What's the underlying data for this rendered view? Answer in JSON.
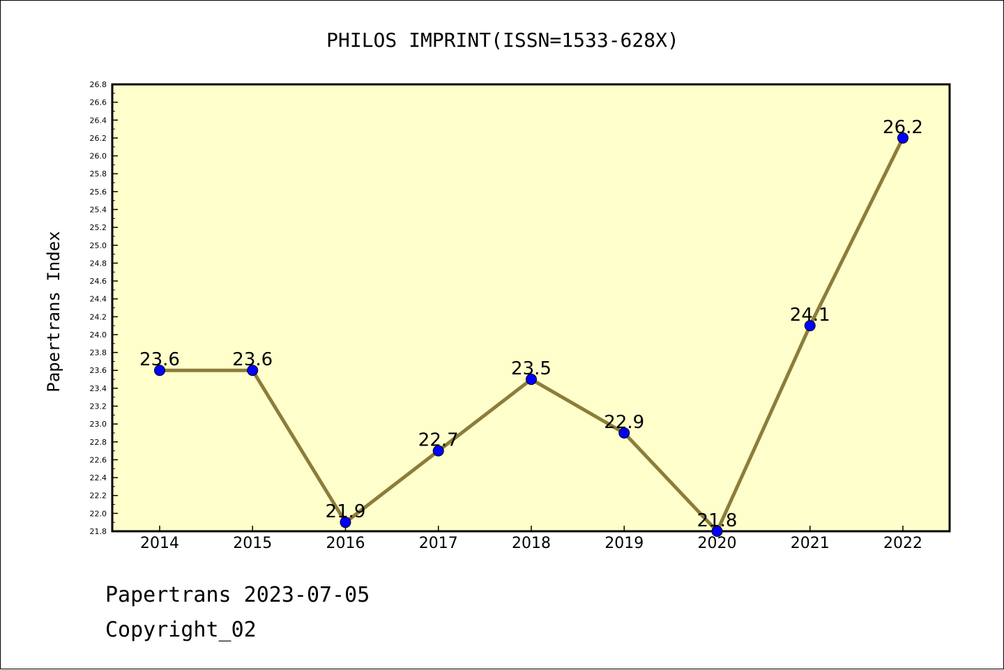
{
  "footer": {
    "line1": "Papertrans 2023-07-05",
    "line2": "Copyright_02"
  },
  "chart_data": {
    "type": "line",
    "title": "PHILOS IMPRINT(ISSN=1533-628X)",
    "xlabel": "",
    "ylabel": "Papertrans Index",
    "x": [
      "2014",
      "2015",
      "2016",
      "2017",
      "2018",
      "2019",
      "2020",
      "2021",
      "2022"
    ],
    "values": [
      23.6,
      23.6,
      21.9,
      22.7,
      23.5,
      22.9,
      21.8,
      24.1,
      26.2
    ],
    "data_labels": [
      "23.6",
      "23.6",
      "21.9",
      "22.7",
      "23.5",
      "22.9",
      "21.8",
      "24.1",
      "26.2"
    ],
    "ylim": [
      21.8,
      26.8
    ],
    "yticks": [
      "21.8",
      "22.0",
      "22.2",
      "22.4",
      "22.6",
      "22.8",
      "23.0",
      "23.2",
      "23.4",
      "23.6",
      "23.8",
      "24.0",
      "24.2",
      "24.4",
      "24.6",
      "24.8",
      "25.0",
      "25.2",
      "25.4",
      "25.6",
      "25.8",
      "26.0",
      "26.2",
      "26.4",
      "26.6",
      "26.8"
    ],
    "grid": false,
    "legend": "none",
    "colors": {
      "plot_background": "#ffffcc",
      "line": "#8b7d3a",
      "marker": "#0000ff"
    }
  }
}
